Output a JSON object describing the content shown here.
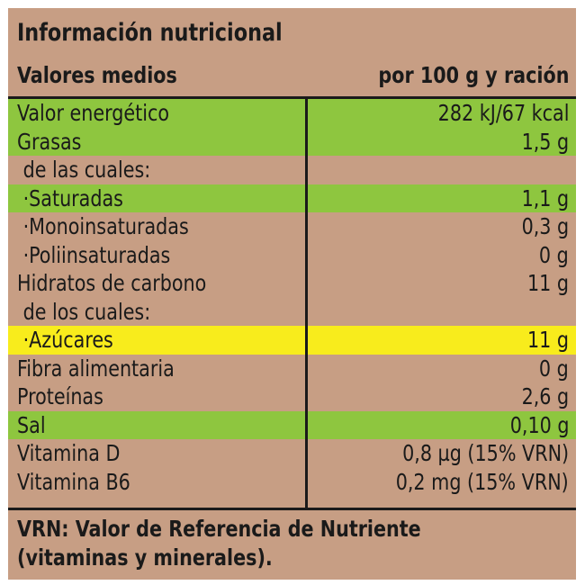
{
  "title": "Información nutricional",
  "subheader": {
    "left": "Valores medios",
    "right": "por 100 g y ración"
  },
  "rows": [
    {
      "name": "Valor energético",
      "value": "282 kJ/67 kcal",
      "highlight": "green"
    },
    {
      "name": "Grasas",
      "value": "1,5 g",
      "highlight": "green"
    },
    {
      "name": " de las cuales:",
      "value": "",
      "highlight": "none"
    },
    {
      "name": " ·Saturadas",
      "value": "1,1 g",
      "highlight": "green"
    },
    {
      "name": " ·Monoinsaturadas",
      "value": "0,3 g",
      "highlight": "none"
    },
    {
      "name": " ·Poliinsaturadas",
      "value": "0 g",
      "highlight": "none"
    },
    {
      "name": "Hidratos de carbono",
      "value": "11 g",
      "highlight": "none"
    },
    {
      "name": " de los cuales:",
      "value": "",
      "highlight": "none"
    },
    {
      "name": " ·Azúcares",
      "value": "11 g",
      "highlight": "yellow"
    },
    {
      "name": "Fibra alimentaria",
      "value": "0 g",
      "highlight": "none"
    },
    {
      "name": "Proteínas",
      "value": "2,6 g",
      "highlight": "none"
    },
    {
      "name": "Sal",
      "value": "0,10 g",
      "highlight": "green"
    },
    {
      "name": "Vitamina D",
      "value": "0,8 µg (15% VRN)",
      "highlight": "none"
    },
    {
      "name": "Vitamina B6",
      "value": "0,2 mg (15% VRN)",
      "highlight": "none"
    }
  ],
  "footnote": {
    "line1": "VRN: Valor de Referencia de Nutriente",
    "line2": "(vitaminas y minerales)."
  },
  "colors": {
    "background": "#c79e84",
    "green_highlight": "#8ec63f",
    "yellow_highlight": "#f8ec1c",
    "text": "#1a1a1a"
  }
}
